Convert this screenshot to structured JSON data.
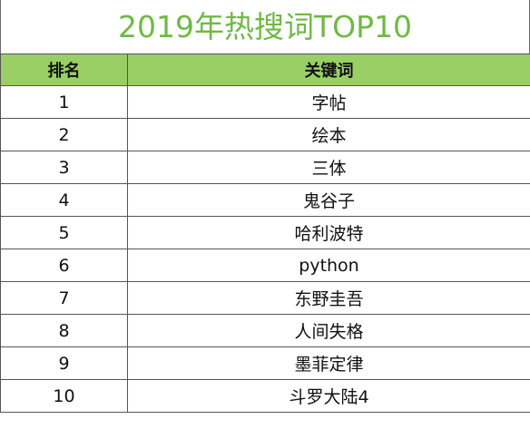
{
  "title": "2019年热搜词TOP10",
  "columns": {
    "rank": "排名",
    "keyword": "关键词"
  },
  "rows": [
    {
      "rank": "1",
      "keyword": "字帖"
    },
    {
      "rank": "2",
      "keyword": "绘本"
    },
    {
      "rank": "3",
      "keyword": "三体"
    },
    {
      "rank": "4",
      "keyword": "鬼谷子"
    },
    {
      "rank": "5",
      "keyword": "哈利波特"
    },
    {
      "rank": "6",
      "keyword": "python"
    },
    {
      "rank": "7",
      "keyword": "东野圭吾"
    },
    {
      "rank": "8",
      "keyword": "人间失格"
    },
    {
      "rank": "9",
      "keyword": "墨菲定律"
    },
    {
      "rank": "10",
      "keyword": "斗罗大陆4"
    }
  ],
  "colors": {
    "title_text": "#70b944",
    "header_fill": "#99cf64",
    "grid": "#555555"
  }
}
